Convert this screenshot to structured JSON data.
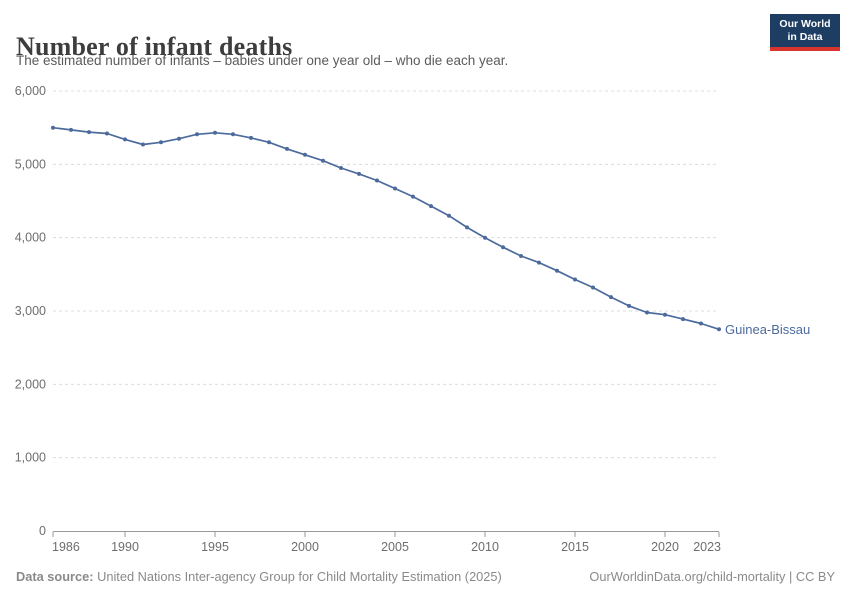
{
  "header": {
    "title": "Number of infant deaths",
    "subtitle": "The estimated number of infants – babies under one year old – who die each year.",
    "logo": {
      "line1": "Our World",
      "line2": "in Data"
    }
  },
  "chart_data": {
    "type": "line",
    "title": "Number of infant deaths",
    "xlabel": "",
    "ylabel": "",
    "xlim": [
      1986,
      2023
    ],
    "ylim": [
      0,
      6000
    ],
    "grid": "horizontal-dashed",
    "legend_position": "end-of-line",
    "xticks": [
      1986,
      1990,
      1995,
      2000,
      2005,
      2010,
      2015,
      2020,
      2023
    ],
    "yticks": [
      0,
      1000,
      2000,
      3000,
      4000,
      5000,
      6000
    ],
    "x": [
      1986,
      1987,
      1988,
      1989,
      1990,
      1991,
      1992,
      1993,
      1994,
      1995,
      1996,
      1997,
      1998,
      1999,
      2000,
      2001,
      2002,
      2003,
      2004,
      2005,
      2006,
      2007,
      2008,
      2009,
      2010,
      2011,
      2012,
      2013,
      2014,
      2015,
      2016,
      2017,
      2018,
      2019,
      2020,
      2021,
      2022,
      2023
    ],
    "series": [
      {
        "name": "Guinea-Bissau",
        "color": "#4C6A9C",
        "values": [
          5500,
          5470,
          5440,
          5420,
          5340,
          5270,
          5300,
          5350,
          5410,
          5430,
          5410,
          5360,
          5300,
          5210,
          5130,
          5050,
          4950,
          4870,
          4780,
          4670,
          4560,
          4430,
          4300,
          4140,
          4000,
          3870,
          3750,
          3660,
          3550,
          3430,
          3320,
          3190,
          3070,
          2980,
          2950,
          2890,
          2830,
          2750
        ]
      }
    ]
  },
  "footer": {
    "source_label": "Data source:",
    "source_text": "United Nations Inter-agency Group for Child Mortality Estimation (2025)",
    "link_text": "OurWorldinData.org/child-mortality | CC BY"
  },
  "colors": {
    "line": "#4C6A9C",
    "grid": "#dcdcdc",
    "axis": "#999999",
    "tick_label": "#6e6e6e",
    "logo_navy": "#1d3d63",
    "logo_red": "#d8352e"
  }
}
